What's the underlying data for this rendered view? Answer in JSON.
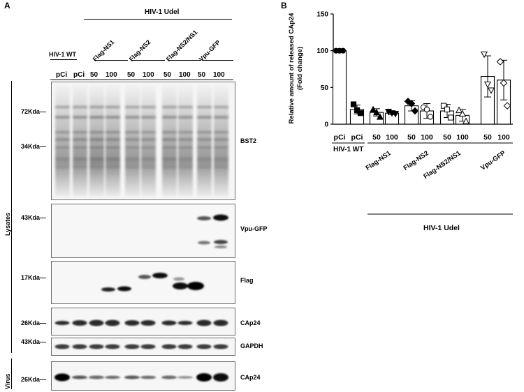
{
  "panels": {
    "a": "A",
    "b": "B"
  },
  "header": {
    "group_label": "HIV-1 Udel",
    "wt_label": "HIV-1 WT",
    "constructs": [
      "Flag-NS1",
      "Flag-NS2",
      "Flag-NS2/NS1",
      "Vpu-GFP"
    ],
    "lanes": [
      "pCi",
      "pCi",
      "50",
      "100",
      "50",
      "100",
      "50",
      "100",
      "50",
      "100"
    ]
  },
  "side_labels": {
    "lysates": "Lysates",
    "virus": "Virus"
  },
  "blots": [
    {
      "name": "BST2",
      "markers": [
        "72Kda",
        "34Kda"
      ]
    },
    {
      "name": "Vpu-GFP",
      "markers": [
        "43Kda"
      ]
    },
    {
      "name": "Flag",
      "markers": [
        "17Kda"
      ]
    },
    {
      "name": "CAp24",
      "markers": [
        "26Kda"
      ]
    },
    {
      "name": "GAPDH",
      "markers": [
        "43Kda"
      ]
    },
    {
      "name": "CAp24",
      "markers": [
        "26Kda"
      ]
    }
  ],
  "chart_data": {
    "type": "bar",
    "ylabel": "Relative amount of released CAp24\n(Fold change)",
    "ylabel_lines": [
      "Relative amount of released CAp24",
      "(Fold change)"
    ],
    "ylim": [
      0,
      150
    ],
    "yticks": [
      0,
      50,
      100,
      150
    ],
    "categories": [
      "pCi",
      "pCi",
      "50",
      "100",
      "50",
      "100",
      "50",
      "100",
      "50",
      "100"
    ],
    "group_labels": [
      "HIV-1 WT",
      "Flag-NS1",
      "Flag-NS2",
      "Flag-NS2/NS1",
      "Vpu-GFP"
    ],
    "bottom_label": "HIV-1 Udel",
    "values": [
      100,
      20,
      16,
      15,
      25,
      18,
      18,
      12,
      65,
      60
    ],
    "errors": [
      0,
      6,
      5,
      2,
      7,
      10,
      9,
      8,
      28,
      27
    ],
    "points": [
      [
        100,
        100,
        100
      ],
      [
        27,
        19,
        15
      ],
      [
        20,
        16,
        10
      ],
      [
        17,
        15,
        14
      ],
      [
        31,
        28,
        18
      ],
      [
        23,
        20,
        10
      ],
      [
        25,
        20,
        9
      ],
      [
        19,
        14,
        4
      ],
      [
        95,
        54,
        46
      ],
      [
        85,
        56,
        25
      ]
    ],
    "markers": [
      "circle",
      "square",
      "triangle",
      "triangle-down",
      "diamond",
      "circle-open",
      "square-open",
      "triangle-open",
      "triangle-down-open",
      "diamond-open"
    ]
  }
}
